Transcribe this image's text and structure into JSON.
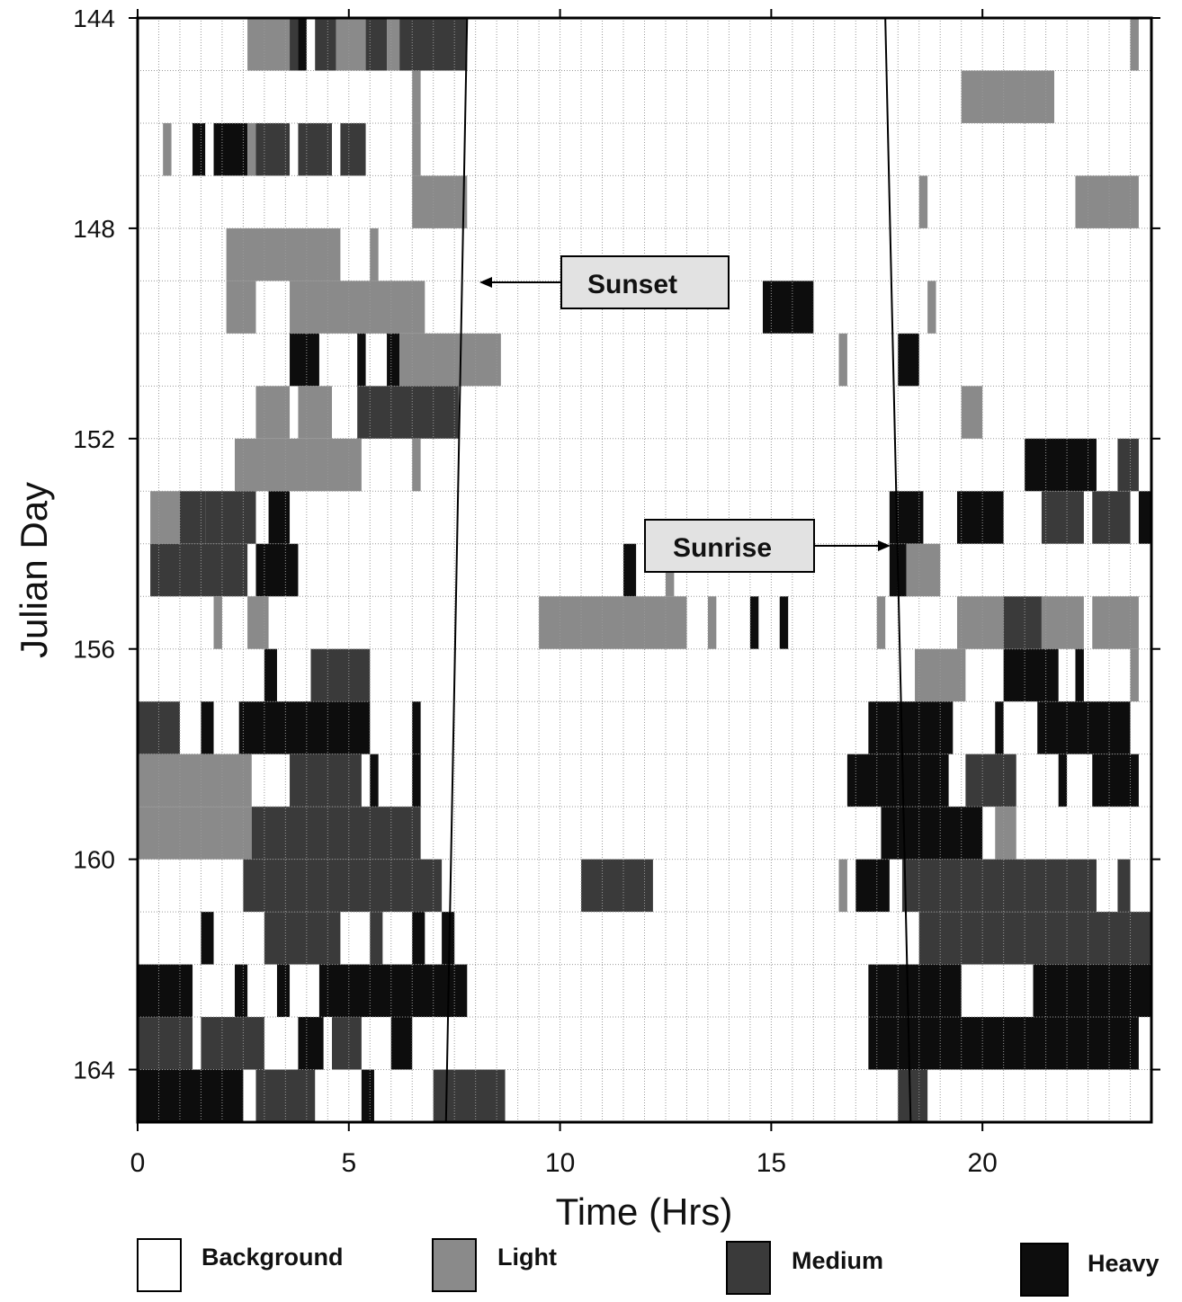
{
  "chart_data": {
    "type": "heatmap",
    "xlabel": "Time (Hrs)",
    "ylabel": "Julian Day",
    "xlim": [
      0,
      24
    ],
    "ylim": [
      144,
      165
    ],
    "x_ticks": [
      0,
      5,
      10,
      15,
      20
    ],
    "y_ticks": [
      144,
      148,
      152,
      156,
      160,
      164
    ],
    "grid": "on",
    "legend_position": "bottom",
    "legend": [
      {
        "key": "background",
        "label": "Background",
        "color": "#ffffff"
      },
      {
        "key": "light",
        "label": "Light",
        "color": "#8a8a8a"
      },
      {
        "key": "medium",
        "label": "Medium",
        "color": "#3a3a3a"
      },
      {
        "key": "heavy",
        "label": "Heavy",
        "color": "#0d0d0d"
      }
    ],
    "annotations": [
      {
        "text": "Sunset",
        "points_to_time": 8.0,
        "points_to_day": 149
      },
      {
        "text": "Sunrise",
        "points_to_time": 17.8,
        "points_to_day": 154
      }
    ],
    "sunset_line": [
      {
        "day": 144,
        "time": 7.8
      },
      {
        "day": 165,
        "time": 7.3
      }
    ],
    "sunrise_line": [
      {
        "day": 144,
        "time": 17.7
      },
      {
        "day": 165,
        "time": 18.3
      }
    ],
    "cells": [
      {
        "day": 144,
        "start": 2.6,
        "end": 3.6,
        "level": "light"
      },
      {
        "day": 144,
        "start": 3.6,
        "end": 3.8,
        "level": "medium"
      },
      {
        "day": 144,
        "start": 3.8,
        "end": 4.0,
        "level": "heavy"
      },
      {
        "day": 144,
        "start": 4.2,
        "end": 4.7,
        "level": "medium"
      },
      {
        "day": 144,
        "start": 4.7,
        "end": 5.4,
        "level": "light"
      },
      {
        "day": 144,
        "start": 5.4,
        "end": 5.9,
        "level": "medium"
      },
      {
        "day": 144,
        "start": 5.9,
        "end": 6.2,
        "level": "light"
      },
      {
        "day": 144,
        "start": 6.2,
        "end": 7.8,
        "level": "medium"
      },
      {
        "day": 144,
        "start": 23.5,
        "end": 23.7,
        "level": "light"
      },
      {
        "day": 145,
        "start": 6.5,
        "end": 6.7,
        "level": "light"
      },
      {
        "day": 145,
        "start": 19.5,
        "end": 21.7,
        "level": "light"
      },
      {
        "day": 146,
        "start": 0.6,
        "end": 0.8,
        "level": "light"
      },
      {
        "day": 146,
        "start": 1.3,
        "end": 1.6,
        "level": "heavy"
      },
      {
        "day": 146,
        "start": 1.8,
        "end": 2.6,
        "level": "heavy"
      },
      {
        "day": 146,
        "start": 2.6,
        "end": 2.8,
        "level": "light"
      },
      {
        "day": 146,
        "start": 2.8,
        "end": 3.6,
        "level": "medium"
      },
      {
        "day": 146,
        "start": 3.8,
        "end": 4.6,
        "level": "medium"
      },
      {
        "day": 146,
        "start": 4.8,
        "end": 5.4,
        "level": "medium"
      },
      {
        "day": 146,
        "start": 6.5,
        "end": 6.7,
        "level": "light"
      },
      {
        "day": 147,
        "start": 6.5,
        "end": 7.8,
        "level": "light"
      },
      {
        "day": 147,
        "start": 18.5,
        "end": 18.7,
        "level": "light"
      },
      {
        "day": 147,
        "start": 22.2,
        "end": 23.7,
        "level": "light"
      },
      {
        "day": 148,
        "start": 2.1,
        "end": 4.8,
        "level": "light"
      },
      {
        "day": 148,
        "start": 5.5,
        "end": 5.7,
        "level": "light"
      },
      {
        "day": 149,
        "start": 2.1,
        "end": 2.8,
        "level": "light"
      },
      {
        "day": 149,
        "start": 3.6,
        "end": 6.8,
        "level": "light"
      },
      {
        "day": 149,
        "start": 14.8,
        "end": 16.0,
        "level": "heavy"
      },
      {
        "day": 149,
        "start": 18.7,
        "end": 18.9,
        "level": "light"
      },
      {
        "day": 150,
        "start": 3.6,
        "end": 4.3,
        "level": "heavy"
      },
      {
        "day": 150,
        "start": 5.2,
        "end": 5.4,
        "level": "heavy"
      },
      {
        "day": 150,
        "start": 5.9,
        "end": 6.2,
        "level": "heavy"
      },
      {
        "day": 150,
        "start": 6.2,
        "end": 8.6,
        "level": "light"
      },
      {
        "day": 150,
        "start": 16.6,
        "end": 16.8,
        "level": "light"
      },
      {
        "day": 150,
        "start": 18.0,
        "end": 18.5,
        "level": "heavy"
      },
      {
        "day": 151,
        "start": 2.8,
        "end": 3.6,
        "level": "light"
      },
      {
        "day": 151,
        "start": 3.8,
        "end": 4.6,
        "level": "light"
      },
      {
        "day": 151,
        "start": 5.2,
        "end": 7.6,
        "level": "medium"
      },
      {
        "day": 151,
        "start": 19.5,
        "end": 20.0,
        "level": "light"
      },
      {
        "day": 152,
        "start": 2.3,
        "end": 5.3,
        "level": "light"
      },
      {
        "day": 152,
        "start": 6.5,
        "end": 6.7,
        "level": "light"
      },
      {
        "day": 152,
        "start": 21.0,
        "end": 22.7,
        "level": "heavy"
      },
      {
        "day": 152,
        "start": 23.2,
        "end": 23.7,
        "level": "medium"
      },
      {
        "day": 153,
        "start": 0.3,
        "end": 1.0,
        "level": "light"
      },
      {
        "day": 153,
        "start": 1.0,
        "end": 1.6,
        "level": "medium"
      },
      {
        "day": 153,
        "start": 1.6,
        "end": 2.8,
        "level": "medium"
      },
      {
        "day": 153,
        "start": 3.1,
        "end": 3.6,
        "level": "heavy"
      },
      {
        "day": 153,
        "start": 17.8,
        "end": 18.6,
        "level": "heavy"
      },
      {
        "day": 153,
        "start": 19.4,
        "end": 20.5,
        "level": "heavy"
      },
      {
        "day": 153,
        "start": 21.4,
        "end": 22.4,
        "level": "medium"
      },
      {
        "day": 153,
        "start": 22.6,
        "end": 23.5,
        "level": "medium"
      },
      {
        "day": 153,
        "start": 23.7,
        "end": 24.0,
        "level": "heavy"
      },
      {
        "day": 154,
        "start": 0.3,
        "end": 2.6,
        "level": "medium"
      },
      {
        "day": 154,
        "start": 2.8,
        "end": 3.8,
        "level": "heavy"
      },
      {
        "day": 154,
        "start": 11.5,
        "end": 11.8,
        "level": "heavy"
      },
      {
        "day": 154,
        "start": 12.5,
        "end": 12.7,
        "level": "light"
      },
      {
        "day": 154,
        "start": 17.8,
        "end": 18.2,
        "level": "heavy"
      },
      {
        "day": 154,
        "start": 18.2,
        "end": 19.0,
        "level": "light"
      },
      {
        "day": 155,
        "start": 1.8,
        "end": 2.0,
        "level": "light"
      },
      {
        "day": 155,
        "start": 2.6,
        "end": 3.1,
        "level": "light"
      },
      {
        "day": 155,
        "start": 9.5,
        "end": 13.0,
        "level": "light"
      },
      {
        "day": 155,
        "start": 13.5,
        "end": 13.7,
        "level": "light"
      },
      {
        "day": 155,
        "start": 14.5,
        "end": 14.7,
        "level": "heavy"
      },
      {
        "day": 155,
        "start": 15.2,
        "end": 15.4,
        "level": "heavy"
      },
      {
        "day": 155,
        "start": 17.5,
        "end": 17.7,
        "level": "light"
      },
      {
        "day": 155,
        "start": 19.4,
        "end": 20.5,
        "level": "light"
      },
      {
        "day": 155,
        "start": 20.5,
        "end": 21.4,
        "level": "medium"
      },
      {
        "day": 155,
        "start": 21.4,
        "end": 22.4,
        "level": "light"
      },
      {
        "day": 155,
        "start": 22.6,
        "end": 23.7,
        "level": "light"
      },
      {
        "day": 156,
        "start": 3.0,
        "end": 3.3,
        "level": "heavy"
      },
      {
        "day": 156,
        "start": 4.1,
        "end": 5.5,
        "level": "medium"
      },
      {
        "day": 156,
        "start": 18.4,
        "end": 19.6,
        "level": "light"
      },
      {
        "day": 156,
        "start": 20.5,
        "end": 21.8,
        "level": "heavy"
      },
      {
        "day": 156,
        "start": 22.2,
        "end": 22.4,
        "level": "heavy"
      },
      {
        "day": 156,
        "start": 23.5,
        "end": 23.7,
        "level": "light"
      },
      {
        "day": 157,
        "start": 0.0,
        "end": 1.0,
        "level": "medium"
      },
      {
        "day": 157,
        "start": 1.5,
        "end": 1.8,
        "level": "heavy"
      },
      {
        "day": 157,
        "start": 2.4,
        "end": 5.5,
        "level": "heavy"
      },
      {
        "day": 157,
        "start": 6.5,
        "end": 6.7,
        "level": "heavy"
      },
      {
        "day": 157,
        "start": 17.3,
        "end": 19.3,
        "level": "heavy"
      },
      {
        "day": 157,
        "start": 20.3,
        "end": 20.5,
        "level": "heavy"
      },
      {
        "day": 157,
        "start": 21.3,
        "end": 23.5,
        "level": "heavy"
      },
      {
        "day": 158,
        "start": 0.0,
        "end": 2.7,
        "level": "light"
      },
      {
        "day": 158,
        "start": 3.6,
        "end": 5.3,
        "level": "medium"
      },
      {
        "day": 158,
        "start": 5.5,
        "end": 5.7,
        "level": "heavy"
      },
      {
        "day": 158,
        "start": 6.5,
        "end": 6.7,
        "level": "heavy"
      },
      {
        "day": 158,
        "start": 16.8,
        "end": 19.2,
        "level": "heavy"
      },
      {
        "day": 158,
        "start": 19.6,
        "end": 20.8,
        "level": "medium"
      },
      {
        "day": 158,
        "start": 21.8,
        "end": 22.0,
        "level": "heavy"
      },
      {
        "day": 158,
        "start": 22.6,
        "end": 23.7,
        "level": "heavy"
      },
      {
        "day": 159,
        "start": 0.0,
        "end": 2.7,
        "level": "light"
      },
      {
        "day": 159,
        "start": 2.7,
        "end": 6.7,
        "level": "medium"
      },
      {
        "day": 159,
        "start": 17.6,
        "end": 20.0,
        "level": "heavy"
      },
      {
        "day": 159,
        "start": 20.3,
        "end": 20.8,
        "level": "light"
      },
      {
        "day": 160,
        "start": 2.5,
        "end": 7.2,
        "level": "medium"
      },
      {
        "day": 160,
        "start": 10.5,
        "end": 12.2,
        "level": "medium"
      },
      {
        "day": 160,
        "start": 16.6,
        "end": 16.8,
        "level": "light"
      },
      {
        "day": 160,
        "start": 17.0,
        "end": 17.8,
        "level": "heavy"
      },
      {
        "day": 160,
        "start": 18.1,
        "end": 22.7,
        "level": "medium"
      },
      {
        "day": 160,
        "start": 23.2,
        "end": 23.5,
        "level": "medium"
      },
      {
        "day": 161,
        "start": 1.5,
        "end": 1.8,
        "level": "heavy"
      },
      {
        "day": 161,
        "start": 3.0,
        "end": 4.8,
        "level": "medium"
      },
      {
        "day": 161,
        "start": 5.5,
        "end": 5.8,
        "level": "medium"
      },
      {
        "day": 161,
        "start": 6.5,
        "end": 6.8,
        "level": "heavy"
      },
      {
        "day": 161,
        "start": 7.2,
        "end": 7.5,
        "level": "heavy"
      },
      {
        "day": 161,
        "start": 18.5,
        "end": 24.0,
        "level": "medium"
      },
      {
        "day": 162,
        "start": 0.0,
        "end": 1.3,
        "level": "heavy"
      },
      {
        "day": 162,
        "start": 2.3,
        "end": 2.6,
        "level": "heavy"
      },
      {
        "day": 162,
        "start": 3.3,
        "end": 3.6,
        "level": "heavy"
      },
      {
        "day": 162,
        "start": 4.3,
        "end": 7.8,
        "level": "heavy"
      },
      {
        "day": 162,
        "start": 17.3,
        "end": 19.5,
        "level": "heavy"
      },
      {
        "day": 162,
        "start": 21.2,
        "end": 24.0,
        "level": "heavy"
      },
      {
        "day": 163,
        "start": 0.0,
        "end": 1.3,
        "level": "medium"
      },
      {
        "day": 163,
        "start": 1.5,
        "end": 3.0,
        "level": "medium"
      },
      {
        "day": 163,
        "start": 3.8,
        "end": 4.4,
        "level": "heavy"
      },
      {
        "day": 163,
        "start": 4.6,
        "end": 5.3,
        "level": "medium"
      },
      {
        "day": 163,
        "start": 6.0,
        "end": 6.5,
        "level": "heavy"
      },
      {
        "day": 163,
        "start": 17.3,
        "end": 23.7,
        "level": "heavy"
      },
      {
        "day": 164,
        "start": 0.0,
        "end": 2.5,
        "level": "heavy"
      },
      {
        "day": 164,
        "start": 2.8,
        "end": 4.2,
        "level": "medium"
      },
      {
        "day": 164,
        "start": 5.3,
        "end": 5.6,
        "level": "heavy"
      },
      {
        "day": 164,
        "start": 7.0,
        "end": 8.7,
        "level": "medium"
      },
      {
        "day": 164,
        "start": 18.0,
        "end": 18.7,
        "level": "medium"
      }
    ]
  }
}
